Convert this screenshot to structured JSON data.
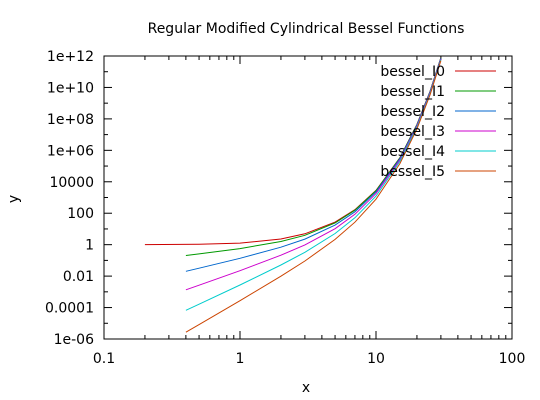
{
  "chart_data": {
    "type": "line",
    "title": "Regular Modified Cylindrical Bessel Functions",
    "xlabel": "x",
    "ylabel": "y",
    "x_scale": "log",
    "y_scale": "log",
    "xlim": [
      0.1,
      100
    ],
    "ylim": [
      1e-06,
      1000000000000.0
    ],
    "x_ticks": [
      {
        "value": 0.1,
        "label": "0.1"
      },
      {
        "value": 1,
        "label": "1"
      },
      {
        "value": 10,
        "label": "10"
      },
      {
        "value": 100,
        "label": "100"
      }
    ],
    "y_ticks": [
      {
        "value": 1000000000000.0,
        "label": "1e+12"
      },
      {
        "value": 10000000000.0,
        "label": "1e+10"
      },
      {
        "value": 100000000.0,
        "label": "1e+08"
      },
      {
        "value": 1000000.0,
        "label": "1e+06"
      },
      {
        "value": 10000.0,
        "label": "10000"
      },
      {
        "value": 100,
        "label": "100"
      },
      {
        "value": 1,
        "label": "1"
      },
      {
        "value": 0.01,
        "label": "0.01"
      },
      {
        "value": 0.0001,
        "label": "0.0001"
      },
      {
        "value": 1e-06,
        "label": "1e-06"
      }
    ],
    "grid": false,
    "legend": "top-right",
    "series": [
      {
        "name": "bessel_I0",
        "color": "#cc0000",
        "x": [
          0.2,
          0.5,
          1,
          2,
          3,
          5,
          7,
          10,
          15,
          20,
          25,
          30
        ],
        "y": [
          1.01,
          1.0635,
          1.2661,
          2.2796,
          4.8808,
          27.24,
          168.59,
          2815.7,
          339649,
          43550000.0,
          5746000000.0,
          778200000000.0
        ]
      },
      {
        "name": "bessel_I1",
        "color": "#009900",
        "x": [
          0.4,
          0.5,
          1,
          2,
          3,
          5,
          7,
          10,
          15,
          20,
          25,
          30
        ],
        "y": [
          0.204,
          0.2579,
          0.5652,
          1.5906,
          3.9534,
          24.336,
          156.04,
          2671,
          328124,
          42450000.0,
          5630000000.0,
          765000000000.0
        ]
      },
      {
        "name": "bessel_I2",
        "color": "#0066cc",
        "x": [
          0.4,
          0.5,
          1,
          2,
          3,
          5,
          7,
          10,
          15,
          20,
          25,
          30
        ],
        "y": [
          0.0203,
          0.0319,
          0.1357,
          0.6889,
          2.2452,
          17.506,
          124.01,
          2281.5,
          295899,
          39310000.0,
          5290000000.0,
          726000000000.0
        ]
      },
      {
        "name": "bessel_I3",
        "color": "#cc00cc",
        "x": [
          0.4,
          0.5,
          1,
          2,
          3,
          5,
          7,
          10,
          15,
          20,
          25,
          30
        ],
        "y": [
          0.00134,
          0.00264,
          0.02217,
          0.2127,
          0.9598,
          10.331,
          85.175,
          1758.4,
          249955,
          34590000.0,
          4770000000.0,
          666000000000.0
        ]
      },
      {
        "name": "bessel_I4",
        "color": "#00cccc",
        "x": [
          0.4,
          0.5,
          1,
          2,
          3,
          5,
          7,
          10,
          15,
          20,
          25,
          30
        ],
        "y": [
          6.7e-05,
          0.000164,
          0.002737,
          0.0507,
          0.3257,
          5.1082,
          51.038,
          1226.5,
          197145,
          28910000.0,
          4130000000.0,
          593000000000.0
        ]
      },
      {
        "name": "bessel_I5",
        "color": "#cc4400",
        "x": [
          0.4,
          0.5,
          1,
          2,
          3,
          5,
          7,
          10,
          15,
          20,
          25,
          30
        ],
        "y": [
          2.7e-06,
          8.2e-06,
          0.000271,
          0.00983,
          0.0912,
          2.1573,
          26.668,
          777.19,
          144000,
          22800000.0,
          3450000000.0,
          512000000000.0
        ]
      }
    ]
  }
}
